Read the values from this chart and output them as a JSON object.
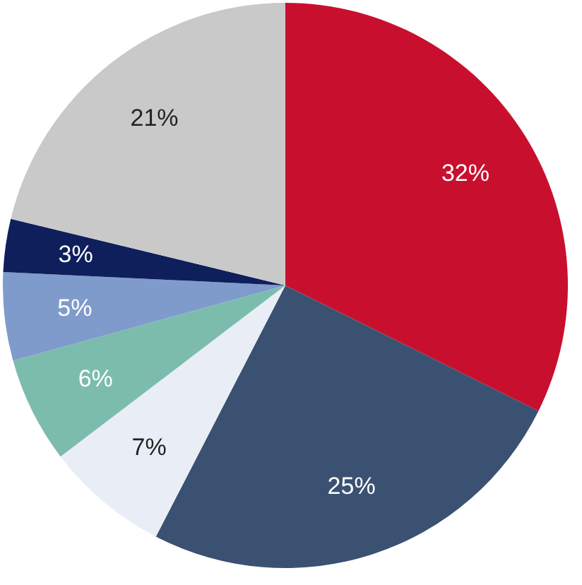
{
  "chart_data": {
    "type": "pie",
    "categories": [
      null,
      null,
      null,
      null,
      null,
      null,
      null
    ],
    "values": [
      32,
      25,
      7,
      6,
      5,
      3,
      21
    ],
    "colors": [
      "#c8102e",
      "#3b5172",
      "#e9eef6",
      "#7cbcad",
      "#7f9bcb",
      "#0f1f5c",
      "#c9c9c9"
    ],
    "value_labels": [
      "32%",
      "25%",
      "7%",
      "6%",
      "5%",
      "3%",
      "21%"
    ],
    "legend": false
  }
}
